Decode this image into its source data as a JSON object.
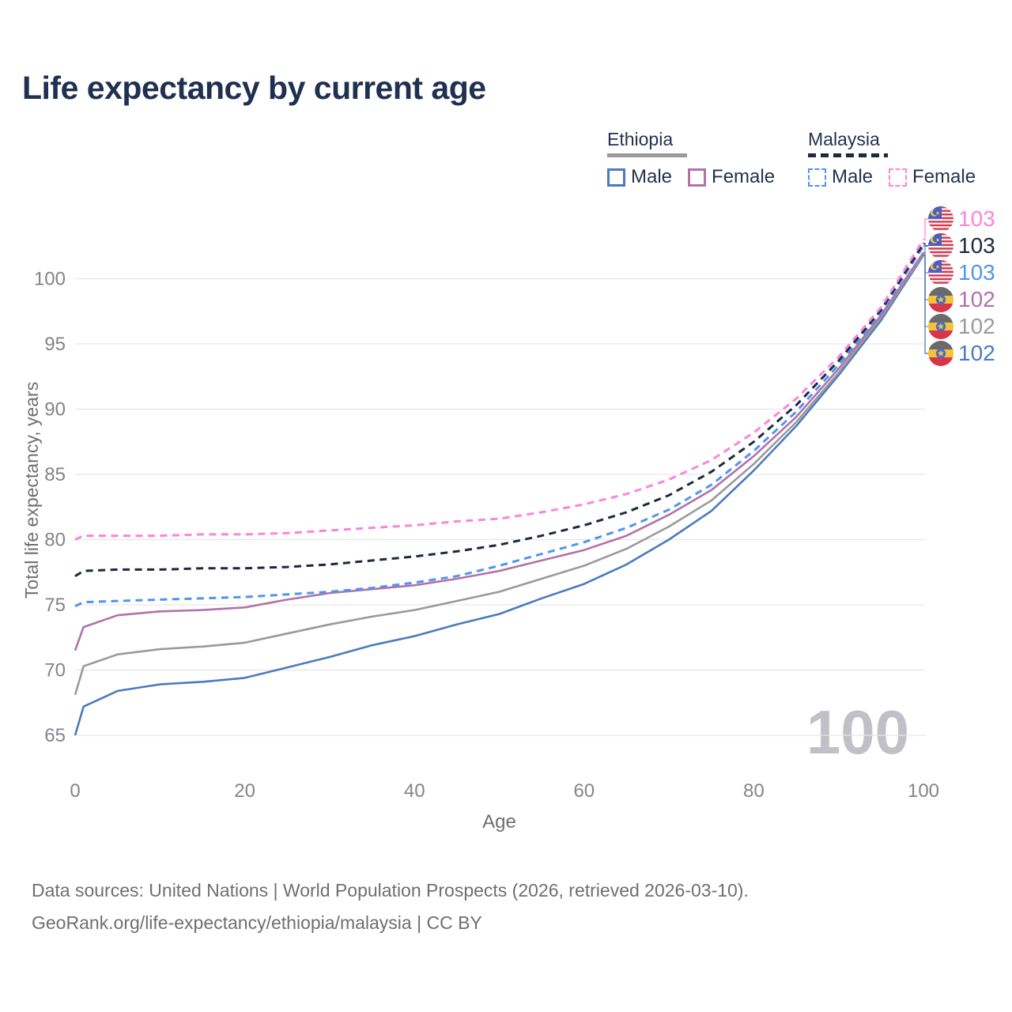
{
  "title": "Life expectancy by current age",
  "legend": {
    "groups": [
      {
        "country": "Ethiopia",
        "total_series": 2,
        "items": [
          {
            "label": "Male",
            "series": 0
          },
          {
            "label": "Female",
            "series": 1
          }
        ]
      },
      {
        "country": "Malaysia",
        "total_series": 5,
        "items": [
          {
            "label": "Male",
            "series": 3
          },
          {
            "label": "Female",
            "series": 4
          }
        ]
      }
    ]
  },
  "watermark": "100",
  "footer": {
    "line1": "Data sources: United Nations | World Population Prospects (2026, retrieved 2026-03-10).",
    "line2": "GeoRank.org/life-expectancy/ethiopia/malaysia | CC BY"
  },
  "colors": {
    "title_text": "#1f3050",
    "legend_text": "#24314e",
    "axis_text": "#84848a",
    "axis_title_text": "#6f6f73",
    "grid": "#e7e7eb",
    "watermark": "#c0c0c6",
    "footer_text": "#6f6f73"
  },
  "chart_data": {
    "type": "line",
    "title": "Life expectancy by current age",
    "xlabel": "Age",
    "ylabel": "Total life expectancy, years",
    "xlim": [
      0,
      100
    ],
    "ylim": [
      64,
      104
    ],
    "x_ticks": [
      0,
      20,
      40,
      60,
      80,
      100
    ],
    "y_ticks": [
      65,
      70,
      75,
      80,
      85,
      90,
      95,
      100
    ],
    "grid": "horizontal",
    "legend_position": "top-right",
    "x": [
      0,
      1,
      5,
      10,
      15,
      20,
      25,
      30,
      35,
      40,
      45,
      50,
      55,
      60,
      65,
      70,
      75,
      80,
      85,
      90,
      95,
      100
    ],
    "draw_order": [
      0,
      2,
      1,
      3,
      5,
      4
    ],
    "label_rows": [
      4,
      5,
      3,
      1,
      2,
      0
    ],
    "series": [
      {
        "name": "Ethiopia Male",
        "country": "Ethiopia",
        "sex": "Male",
        "color": "#4a7bbf",
        "line_style": "solid",
        "flag": "ethiopia",
        "end_label": "102",
        "values": [
          65.0,
          67.2,
          68.4,
          68.9,
          69.1,
          69.4,
          70.2,
          71.0,
          71.9,
          72.6,
          73.5,
          74.3,
          75.5,
          76.6,
          78.1,
          80.0,
          82.2,
          85.3,
          88.7,
          92.6,
          96.8,
          101.8
        ]
      },
      {
        "name": "Ethiopia Female",
        "country": "Ethiopia",
        "sex": "Female",
        "color": "#b172a8",
        "line_style": "solid",
        "flag": "ethiopia",
        "end_label": "102",
        "values": [
          71.5,
          73.3,
          74.2,
          74.5,
          74.6,
          74.8,
          75.4,
          75.9,
          76.2,
          76.5,
          77.0,
          77.6,
          78.4,
          79.2,
          80.3,
          81.9,
          83.8,
          86.4,
          89.4,
          93.1,
          97.2,
          102.0
        ]
      },
      {
        "name": "Ethiopia Total",
        "country": "Ethiopia",
        "sex": "Total",
        "color": "#9a9a9a",
        "line_style": "solid",
        "flag": "ethiopia",
        "end_label": "102",
        "values": [
          68.1,
          70.3,
          71.2,
          71.6,
          71.8,
          72.1,
          72.8,
          73.5,
          74.1,
          74.6,
          75.3,
          76.0,
          77.0,
          78.0,
          79.3,
          81.0,
          83.0,
          85.8,
          89.0,
          92.8,
          97.0,
          101.9
        ]
      },
      {
        "name": "Malaysia Male",
        "country": "Malaysia",
        "sex": "Male",
        "color": "#4f95ef",
        "line_style": "dashed",
        "flag": "malaysia",
        "end_label": "103",
        "values": [
          74.9,
          75.2,
          75.3,
          75.4,
          75.5,
          75.6,
          75.8,
          76.0,
          76.3,
          76.7,
          77.2,
          78.0,
          78.9,
          79.8,
          80.9,
          82.3,
          84.2,
          86.8,
          89.8,
          93.4,
          97.4,
          102.5
        ]
      },
      {
        "name": "Malaysia Female",
        "country": "Malaysia",
        "sex": "Female",
        "color": "#fb85da",
        "line_style": "dashed",
        "flag": "malaysia",
        "end_label": "103",
        "values": [
          80.0,
          80.3,
          80.3,
          80.3,
          80.4,
          80.4,
          80.5,
          80.7,
          80.9,
          81.1,
          81.4,
          81.6,
          82.1,
          82.7,
          83.5,
          84.6,
          86.1,
          88.2,
          90.8,
          94.0,
          97.8,
          103.0
        ]
      },
      {
        "name": "Malaysia Total",
        "country": "Malaysia",
        "sex": "Total",
        "color": "#1c2940",
        "line_style": "dashed",
        "flag": "malaysia",
        "end_label": "103",
        "values": [
          77.2,
          77.6,
          77.7,
          77.7,
          77.8,
          77.8,
          77.9,
          78.1,
          78.4,
          78.7,
          79.1,
          79.6,
          80.3,
          81.1,
          82.1,
          83.4,
          85.2,
          87.5,
          90.3,
          93.7,
          97.6,
          102.7
        ]
      }
    ]
  }
}
